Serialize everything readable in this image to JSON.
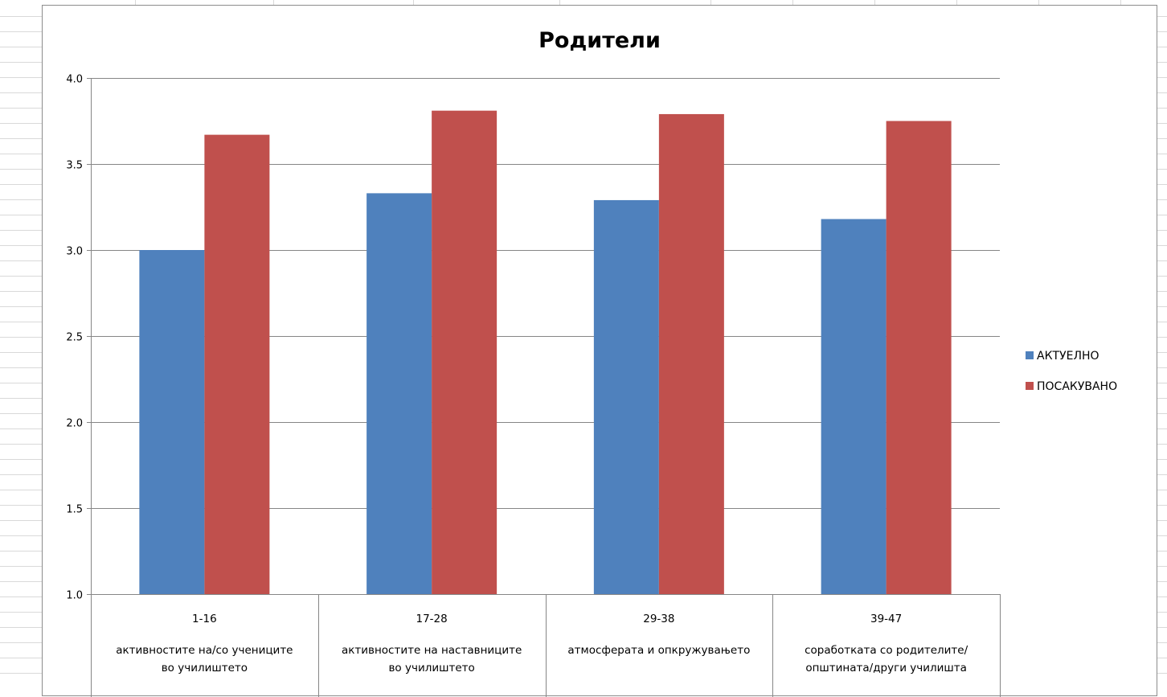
{
  "chart_data": {
    "type": "bar",
    "title": "Родители",
    "xlabel": "",
    "ylabel": "",
    "ylim": [
      1.0,
      4.0
    ],
    "yticks": [
      "1.0",
      "1.5",
      "2.0",
      "2.5",
      "3.0",
      "3.5",
      "4.0"
    ],
    "grid": true,
    "legend_position": "right",
    "categories": [
      {
        "code": "1-16",
        "lines": [
          "активностите на/со учениците",
          "во училиштето"
        ]
      },
      {
        "code": "17-28",
        "lines": [
          "активностите на наставниците",
          "во училиштето"
        ]
      },
      {
        "code": "29-38",
        "lines": [
          "атмосферата и опкружувањето"
        ]
      },
      {
        "code": "39-47",
        "lines": [
          "соработката со родителите/",
          "општината/други училишта"
        ]
      }
    ],
    "series": [
      {
        "name": "АКТУЕЛНО",
        "color": "#4F81BD",
        "values": [
          3.0,
          3.33,
          3.29,
          3.18
        ]
      },
      {
        "name": "ПОСАКУВАНО",
        "color": "#C0504D",
        "values": [
          3.67,
          3.81,
          3.79,
          3.75
        ]
      }
    ]
  }
}
